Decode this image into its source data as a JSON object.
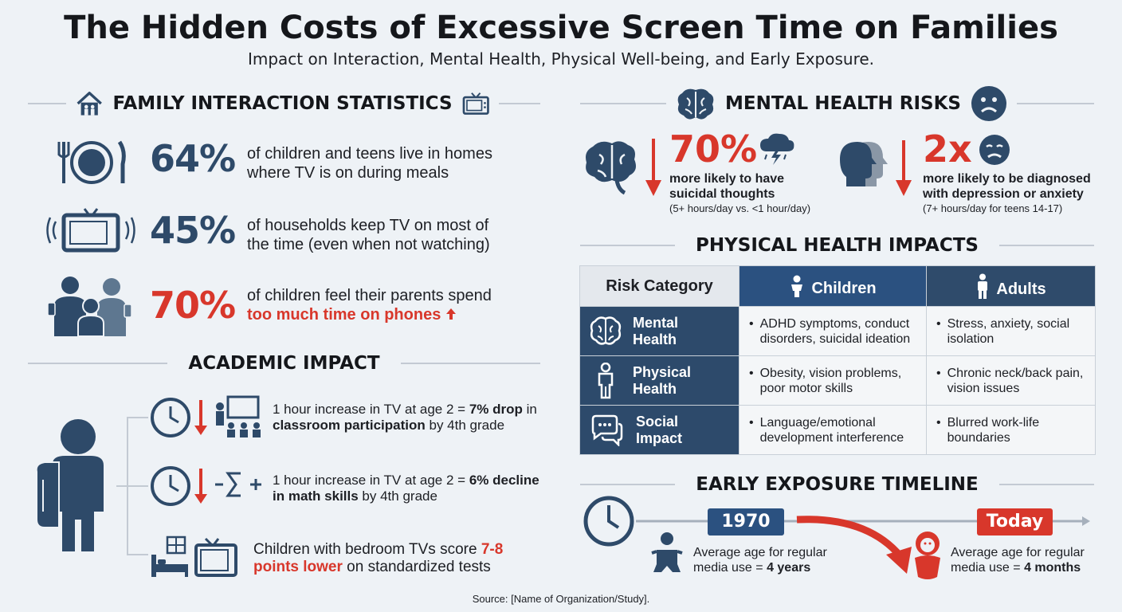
{
  "header": {
    "title": "The Hidden Costs of Excessive Screen Time on Families",
    "subtitle": "Impact on Interaction, Mental Health, Physical Well-being, and Early Exposure."
  },
  "family": {
    "heading": "FAMILY INTERACTION STATISTICS",
    "stats": [
      {
        "value": "64%",
        "line1": "of children and teens live in homes",
        "line2": "where TV is on during meals",
        "highlight": ""
      },
      {
        "value": "45%",
        "line1": "of households keep TV on most of",
        "line2": "the time (even when not watching)",
        "highlight": ""
      },
      {
        "value": "70%",
        "line1": "of children feel their parents spend",
        "line2": "",
        "highlight": "too much time on phones"
      }
    ]
  },
  "academic": {
    "heading": "ACADEMIC IMPACT",
    "items": [
      {
        "pre": "1 hour increase in TV at age 2 = ",
        "bold1": "7% drop",
        "mid": " in",
        "bold2": "classroom participation",
        "post": " by 4th grade"
      },
      {
        "pre": "1 hour increase in TV at age 2 = ",
        "bold1": "6% decline",
        "mid": "",
        "bold2": "in math skills",
        "post": " by 4th grade"
      },
      {
        "pre": "Children with bedroom TVs score ",
        "hl1": "7-8",
        "hl2": "points lower",
        "post": " on standardized tests"
      }
    ]
  },
  "mental": {
    "heading": "MENTAL HEALTH RISKS",
    "items": [
      {
        "value": "70%",
        "desc1": "more likely to have",
        "desc2": "suicidal thoughts",
        "note": "(5+ hours/day vs. <1 hour/day)"
      },
      {
        "value": "2x",
        "desc1": "more likely to be diagnosed",
        "desc2": "with depression or anxiety",
        "note": "(7+ hours/day for teens 14-17)"
      }
    ]
  },
  "physical": {
    "heading": "PHYSICAL HEALTH IMPACTS",
    "columns": [
      "Risk Category",
      "Children",
      "Adults"
    ],
    "rows": [
      {
        "cat1": "Mental",
        "cat2": "Health",
        "children": "ADHD symptoms, conduct disorders, suicidal ideation",
        "adults": "Stress, anxiety, social isolation"
      },
      {
        "cat1": "Physical",
        "cat2": "Health",
        "children": "Obesity, vision problems, poor motor skills",
        "adults": "Chronic neck/back pain, vision issues"
      },
      {
        "cat1": "Social",
        "cat2": "Impact",
        "children": "Language/emotional development interference",
        "adults": "Blurred work-life boundaries"
      }
    ]
  },
  "timeline": {
    "heading": "EARLY EXPOSURE TIMELINE",
    "points": [
      {
        "label": "1970",
        "text1": "Average age for regular",
        "text2pre": "media use = ",
        "text2bold": "4 years",
        "color": "#2b5180"
      },
      {
        "label": "Today",
        "text1": "Average age for regular",
        "text2pre": "media use = ",
        "text2bold": "4 months",
        "color": "#d8372b"
      }
    ]
  },
  "footer": {
    "source": "Source: [Name of Organization/Study]."
  },
  "colors": {
    "navy": "#2e4a69",
    "red": "#d8372b",
    "background": "#eef2f6"
  }
}
